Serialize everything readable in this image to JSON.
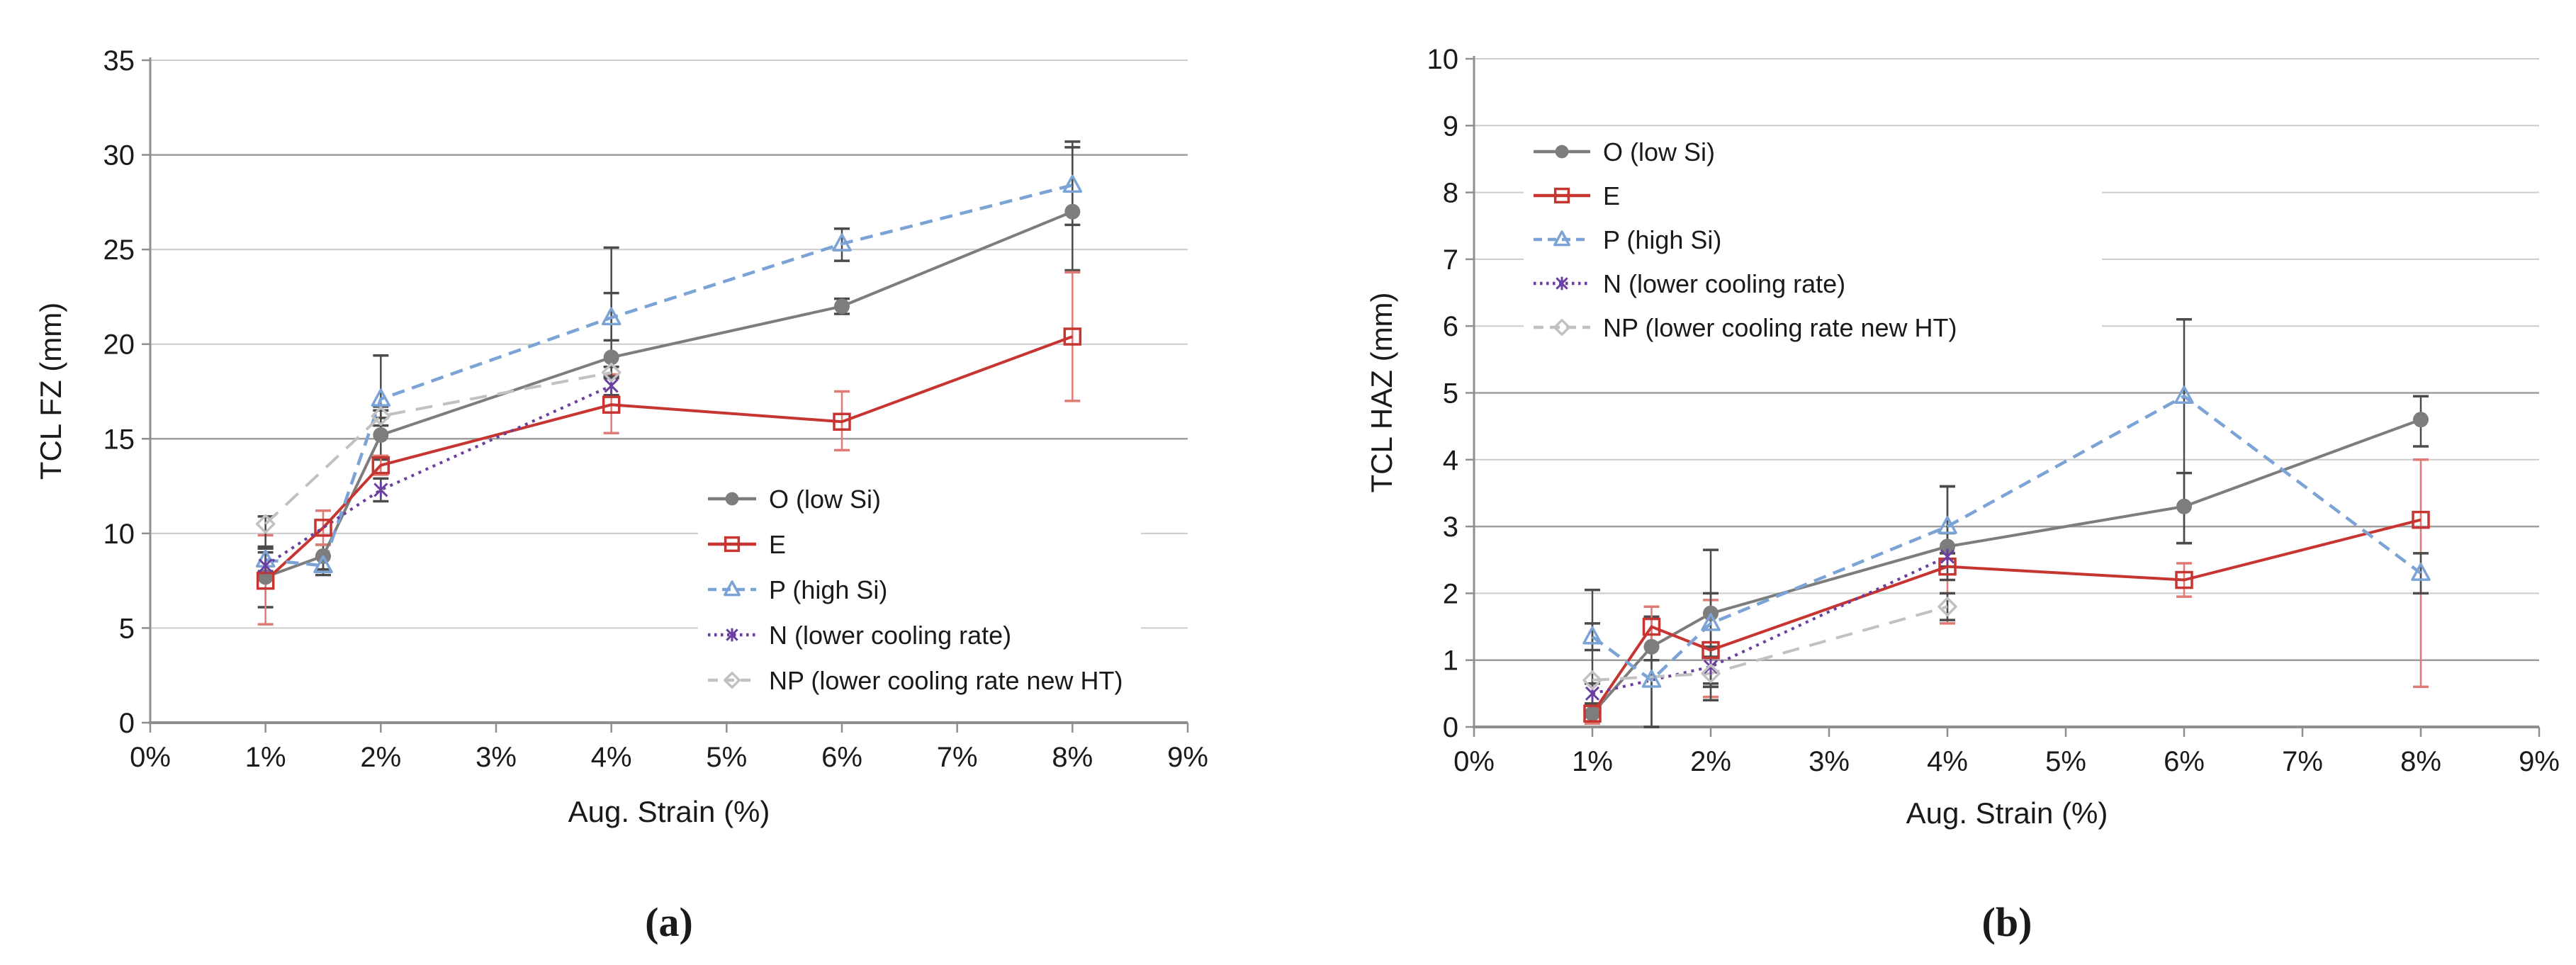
{
  "page": {
    "background": "#ffffff"
  },
  "chart_data": [
    {
      "id": "a",
      "type": "line",
      "caption": "(a)",
      "xlabel": "Aug. Strain (%)",
      "ylabel": "TCL FZ (mm)",
      "xlim": [
        0,
        9
      ],
      "ylim": [
        0,
        35
      ],
      "x_tick_labels": [
        "0%",
        "1%",
        "2%",
        "3%",
        "4%",
        "5%",
        "6%",
        "7%",
        "8%",
        "9%"
      ],
      "y_tick_step": 5,
      "y_tick_labels": [
        "0",
        "5",
        "10",
        "15",
        "20",
        "25",
        "30",
        "35"
      ],
      "grid": "horizontal",
      "legend_position": "inside-center-right",
      "series": [
        {
          "name": "O (low Si)",
          "color": "#7d7d7d",
          "marker": "circle-filled",
          "line": "solid",
          "err_color": "#4b4b4b",
          "x": [
            1,
            1.5,
            2,
            4,
            6,
            8
          ],
          "y": [
            7.7,
            8.8,
            15.2,
            19.3,
            22,
            27
          ],
          "err_plus": [
            1.6,
            0.6,
            1.3,
            5.8,
            0.4,
            3.7
          ],
          "err_minus": [
            1.6,
            0.7,
            1.3,
            2,
            0.4,
            3.1
          ]
        },
        {
          "name": "E",
          "color": "#c63531",
          "marker": "square-open",
          "line": "solid",
          "err_color": "#e07a74",
          "x": [
            1,
            1.5,
            2,
            4,
            6,
            8
          ],
          "y": [
            7.5,
            10.3,
            13.6,
            16.8,
            15.9,
            20.4
          ],
          "err_plus": [
            2.4,
            0.9,
            0.5,
            1.6,
            1.6,
            3.4
          ],
          "err_minus": [
            2.3,
            0.9,
            0.5,
            1.5,
            1.5,
            3.4
          ]
        },
        {
          "name": "P (high Si)",
          "color": "#7ba3d6",
          "marker": "triangle-open",
          "line": "dash",
          "err_color": "#4b4b4b",
          "x": [
            1,
            1.5,
            2,
            4,
            6,
            8
          ],
          "y": [
            8.6,
            8.3,
            17.1,
            21.4,
            25.3,
            28.4
          ],
          "err_plus": [
            0.6,
            0.5,
            2.3,
            1.3,
            0.8,
            2
          ],
          "err_minus": [
            0.6,
            0.5,
            1,
            1.2,
            0.9,
            2.1
          ]
        },
        {
          "name": "N (lower cooling rate)",
          "color": "#6a3fa0",
          "marker": "x-star",
          "line": "dot",
          "err_color": "#4b4b4b",
          "x": [
            1,
            2,
            4
          ],
          "y": [
            8.3,
            12.3,
            17.8
          ],
          "err_plus": [
            0.7,
            0.6,
            0.5
          ],
          "err_minus": [
            0.7,
            0.6,
            0.5
          ]
        },
        {
          "name": "NP (lower cooling rate new HT)",
          "color": "#c1c1c1",
          "marker": "diamond-open",
          "line": "longdash",
          "err_color": "#4b4b4b",
          "x": [
            1,
            2,
            4
          ],
          "y": [
            10.5,
            16.2,
            18.5
          ],
          "err_plus": [
            0.4,
            0.5,
            0.3
          ],
          "err_minus": [
            1.3,
            0.5,
            0.3
          ]
        }
      ]
    },
    {
      "id": "b",
      "type": "line",
      "caption": "(b)",
      "xlabel": "Aug. Strain (%)",
      "ylabel": "TCL HAZ (mm)",
      "xlim": [
        0,
        9
      ],
      "ylim": [
        0,
        10
      ],
      "x_tick_labels": [
        "0%",
        "1%",
        "2%",
        "3%",
        "4%",
        "5%",
        "6%",
        "7%",
        "8%",
        "9%"
      ],
      "y_tick_step": 1,
      "y_tick_labels": [
        "0",
        "1",
        "2",
        "3",
        "4",
        "5",
        "6",
        "7",
        "8",
        "9",
        "10"
      ],
      "grid": "horizontal",
      "legend_position": "inside-top-left",
      "series": [
        {
          "name": "O (low Si)",
          "color": "#7d7d7d",
          "marker": "circle-filled",
          "line": "solid",
          "err_color": "#4b4b4b",
          "x": [
            1,
            1.5,
            2,
            4,
            6,
            8
          ],
          "y": [
            0.2,
            1.2,
            1.7,
            2.7,
            3.3,
            4.6
          ],
          "err_plus": [
            0.15,
            0.45,
            0.3,
            0.9,
            0.5,
            0.35
          ],
          "err_minus": [
            0.15,
            1.2,
            1.1,
            0.3,
            0.55,
            0.4
          ]
        },
        {
          "name": "E",
          "color": "#c63531",
          "marker": "square-open",
          "line": "solid",
          "err_color": "#e07a74",
          "x": [
            1,
            1.5,
            2,
            4,
            6,
            8
          ],
          "y": [
            0.2,
            1.5,
            1.15,
            2.4,
            2.2,
            3.1
          ],
          "err_plus": [
            0.15,
            0.3,
            0.75,
            0.2,
            0.25,
            0.9
          ],
          "err_minus": [
            0.15,
            0.3,
            0.7,
            0.85,
            0.25,
            2.5
          ]
        },
        {
          "name": "P (high Si)",
          "color": "#7ba3d6",
          "marker": "triangle-open",
          "line": "dash",
          "err_color": "#4b4b4b",
          "x": [
            1,
            1.5,
            2,
            4,
            6,
            8
          ],
          "y": [
            1.35,
            0.7,
            1.55,
            3,
            4.95,
            2.3
          ],
          "err_plus": [
            0.2,
            0.3,
            1.1,
            0.6,
            1.15,
            0.3
          ],
          "err_minus": [
            0.2,
            0.7,
            0.9,
            0.4,
            2.2,
            0.3
          ]
        },
        {
          "name": "N (lower cooling rate)",
          "color": "#6a3fa0",
          "marker": "x-star",
          "line": "dot",
          "err_color": "#4b4b4b",
          "x": [
            1,
            2,
            4
          ],
          "y": [
            0.5,
            0.9,
            2.55
          ],
          "err_plus": [
            0.15,
            0.3,
            0.35
          ],
          "err_minus": [
            0.15,
            0.3,
            0.35
          ]
        },
        {
          "name": "NP (lower cooling rate new HT)",
          "color": "#c1c1c1",
          "marker": "diamond-open",
          "line": "longdash",
          "err_color": "#4b4b4b",
          "x": [
            1,
            2,
            4
          ],
          "y": [
            0.7,
            0.8,
            1.8
          ],
          "err_plus": [
            1.35,
            0.25,
            0.2
          ],
          "err_minus": [
            0.55,
            0.4,
            0.2
          ]
        }
      ]
    }
  ]
}
